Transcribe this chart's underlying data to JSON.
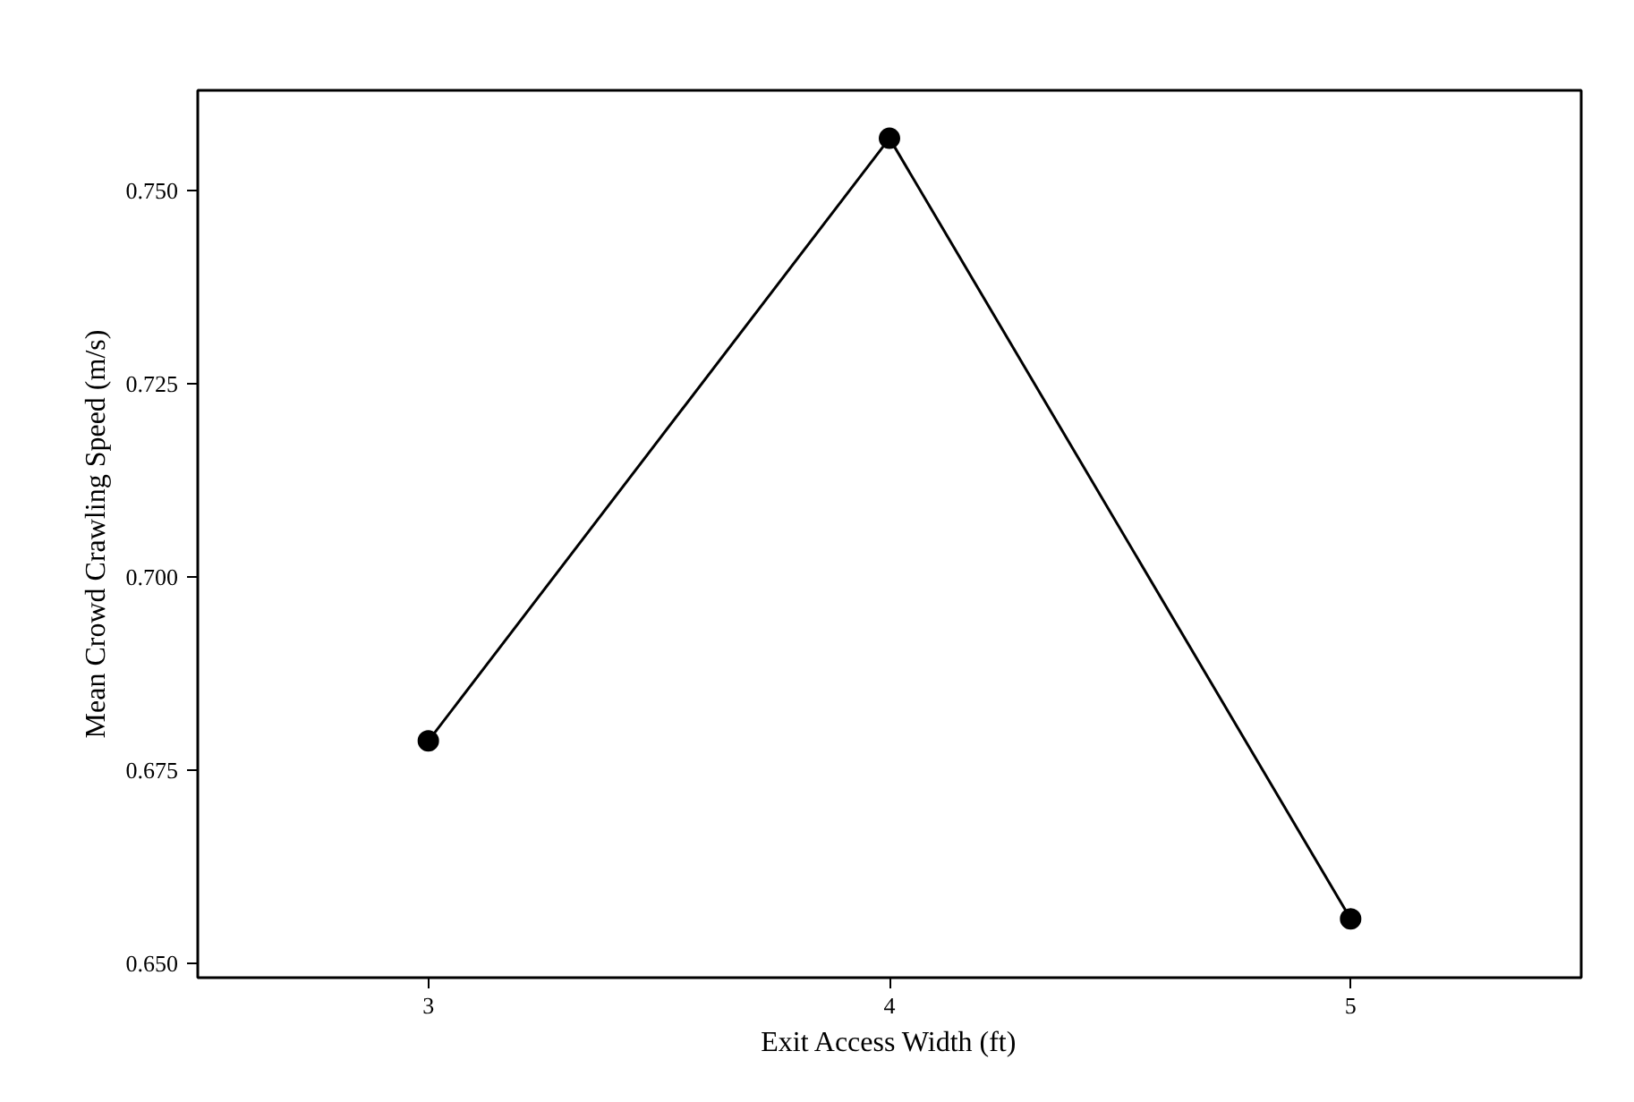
{
  "chart_data": {
    "type": "line",
    "xlabel": "Exit Access Width (ft)",
    "ylabel": "Mean Crowd Crawling Speed (m/s)",
    "x": [
      3,
      4,
      5
    ],
    "series": [
      {
        "color": "#000000",
        "values": [
          0.6788,
          0.7567,
          0.6558
        ]
      }
    ],
    "xlim": [
      2.5,
      5.5
    ],
    "xticks": [
      3,
      4,
      5
    ],
    "ylim": [
      0.6482,
      0.7629
    ],
    "yticks": [
      {
        "value": 0.65,
        "label": "0.650"
      },
      {
        "value": 0.675,
        "label": "0.675"
      },
      {
        "value": 0.7,
        "label": "0.700"
      },
      {
        "value": 0.725,
        "label": "0.725"
      },
      {
        "value": 0.75,
        "label": "0.750"
      }
    ],
    "grid": false,
    "marker": "circle",
    "line_style": "solid"
  }
}
